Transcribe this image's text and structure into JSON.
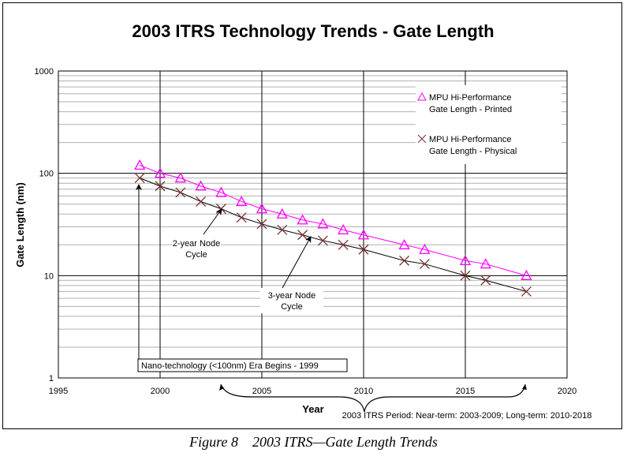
{
  "chart_data": {
    "type": "line",
    "title": "2003 ITRS Technology Trends - Gate Length",
    "xlabel": "Year",
    "ylabel": "Gate Length (nm)",
    "xlim": [
      1995,
      2020
    ],
    "ylim": [
      1,
      1000
    ],
    "y_scale": "log",
    "x_ticks": [
      "1995",
      "2000",
      "2005",
      "2010",
      "2015",
      "2020"
    ],
    "y_ticks": [
      "1",
      "10",
      "100",
      "1000"
    ],
    "grid": true,
    "legend_position": "top-right",
    "series": [
      {
        "name": "MPU Hi-Performance Gate Length - Printed",
        "legend_lines": [
          "MPU Hi-Performance",
          "Gate Length - Printed"
        ],
        "marker": "triangle",
        "color": "#ff00ff",
        "x": [
          1999,
          2000,
          2001,
          2002,
          2003,
          2004,
          2005,
          2006,
          2007,
          2008,
          2009,
          2010,
          2012,
          2013,
          2015,
          2016,
          2018
        ],
        "y": [
          120,
          100,
          90,
          75,
          65,
          53,
          45,
          40,
          35,
          32,
          28,
          25,
          20,
          18,
          14,
          13,
          10
        ]
      },
      {
        "name": "MPU Hi-Performance Gate Length - Physical",
        "legend_lines": [
          "MPU Hi-Performance",
          "Gate Length - Physical"
        ],
        "marker": "x",
        "color": "#7a3030",
        "x": [
          1999,
          2000,
          2001,
          2002,
          2003,
          2004,
          2005,
          2006,
          2007,
          2008,
          2009,
          2010,
          2012,
          2013,
          2015,
          2016,
          2018
        ],
        "y": [
          90,
          75,
          65,
          53,
          45,
          37,
          32,
          28,
          25,
          22,
          20,
          18,
          14,
          13,
          10,
          9,
          7
        ]
      }
    ],
    "annotations": {
      "two_year": [
        "2-year Node",
        "Cycle"
      ],
      "three_year": [
        "3-year Node",
        "Cycle"
      ],
      "nano_era": "Nano-technology (<100nm) Era Begins - 1999",
      "period": "2003 ITRS Period: Near-term:  2003-2009; Long-term:  2010-2018"
    }
  },
  "caption": "Figure 8    2003 ITRS—Gate Length Trends"
}
